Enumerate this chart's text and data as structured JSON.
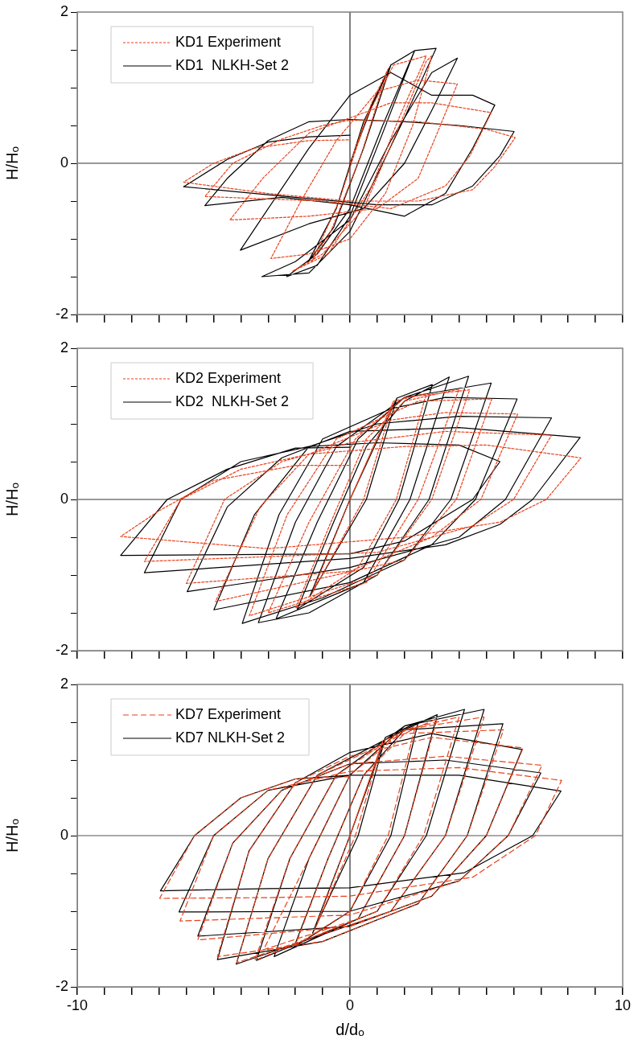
{
  "chart_data": [
    {
      "type": "line",
      "ylabel": "H/Hₒ",
      "xlim": [
        -10,
        10
      ],
      "ylim": [
        -2,
        2
      ],
      "xticks": [
        -10,
        {
          "value": -9,
          "label": null
        },
        {
          "value": -8,
          "label": null
        },
        {
          "value": -7,
          "label": null
        },
        {
          "value": -6,
          "label": null
        },
        {
          "value": -5,
          "label": null
        },
        {
          "value": -4,
          "label": null
        },
        {
          "value": -3,
          "label": null
        },
        {
          "value": -2,
          "label": null
        },
        {
          "value": -1,
          "label": null
        },
        0,
        {
          "value": 1,
          "label": null
        },
        {
          "value": 2,
          "label": null
        },
        {
          "value": 3,
          "label": null
        },
        {
          "value": 4,
          "label": null
        },
        {
          "value": 5,
          "label": null
        },
        {
          "value": 6,
          "label": null
        },
        {
          "value": 7,
          "label": null
        },
        {
          "value": 8,
          "label": null
        },
        {
          "value": 9,
          "label": null
        },
        10
      ],
      "yticks": [
        -2,
        {
          "value": -1.5,
          "label": null
        },
        {
          "value": -1,
          "label": null
        },
        {
          "value": -0.5,
          "label": null
        },
        0,
        {
          "value": 0.5,
          "label": null
        },
        {
          "value": 1,
          "label": null
        },
        {
          "value": 1.5,
          "label": null
        },
        2
      ],
      "tick_labels": "y",
      "grid": false,
      "legend": "top left",
      "marker": "none",
      "ref_lines": [
        {
          "axis": "x",
          "value": 0,
          "color": "#000000"
        },
        {
          "axis": "y",
          "value": 0,
          "color": "#333333"
        }
      ],
      "series": [
        {
          "name": "KD1 Experiment",
          "color": "#e8411c",
          "line_style": "dotted",
          "x": [
            0,
            0.8,
            1.4,
            0.4,
            -0.7,
            -1.4,
            -0.4,
            0.6,
            1.6,
            2.8,
            1.8,
            0.8,
            -0.8,
            -2.12,
            -1.0,
            0.5,
            1.7,
            2.8,
            3.0,
            2.3,
            1.3,
            0,
            -1.5,
            -2.9,
            -1.8,
            -0.5,
            1.0,
            2.5,
            3.94,
            3.2,
            2.5,
            1.0,
            -1.5,
            -4.4,
            -3.2,
            -1.5,
            0,
            1.5,
            3.0,
            5.18,
            4.4,
            3.5,
            1.5,
            -1.0,
            -5.32,
            -4.3,
            -2.5,
            -1.0,
            0,
            2.5,
            5.0,
            6.06,
            5.3,
            4.5,
            2.5,
            0,
            -3.0,
            -6.1,
            -5.0,
            -3.5,
            -1.5,
            0
          ],
          "values": [
            0,
            0.8,
            1.25,
            0.1,
            -0.9,
            -1.3,
            -0.5,
            0.6,
            1.3,
            1.42,
            0.6,
            -0.3,
            -1.2,
            -1.43,
            -1.2,
            -0.6,
            0.4,
            1.35,
            1.42,
            0.5,
            -0.4,
            -1.0,
            -1.2,
            -1.26,
            -0.5,
            0.3,
            0.95,
            1.1,
            1.05,
            0.4,
            -0.2,
            -0.6,
            -0.7,
            -0.75,
            -0.2,
            0.4,
            0.6,
            0.8,
            0.8,
            0.67,
            0.1,
            -0.3,
            -0.6,
            -0.5,
            -0.44,
            0.0,
            0.32,
            0.5,
            0.57,
            0.55,
            0.45,
            0.34,
            -0.05,
            -0.35,
            -0.5,
            -0.5,
            -0.4,
            -0.25,
            0.0,
            0.2,
            0.3,
            0.31
          ]
        },
        {
          "name": "KD1  NLKH-Set 2",
          "color": "#000000",
          "line_style": "solid",
          "x": [
            0,
            0.8,
            1.5,
            0.5,
            -0.6,
            -1.54,
            -0.5,
            0.5,
            1.5,
            2.37,
            1.2,
            0,
            -1.2,
            -2.32,
            -1.2,
            0,
            1.2,
            2.37,
            3.16,
            2.0,
            1.2,
            0,
            -1.5,
            -3.23,
            -2.0,
            0,
            1.5,
            3.0,
            3.94,
            3.0,
            2.0,
            0.5,
            -1.5,
            -4.02,
            -3.0,
            -1.5,
            0,
            1.5,
            3.0,
            4.5,
            5.31,
            4.5,
            3.5,
            2.0,
            0,
            -2.5,
            -5.32,
            -4.5,
            -3.0,
            -1.5,
            0,
            2.0,
            4.0,
            6.02,
            5.5,
            4.5,
            3.0,
            1.0,
            -2.0,
            -6.1,
            -4.5,
            -3.0,
            -1.5,
            0
          ],
          "values": [
            0,
            0.75,
            1.3,
            0.2,
            -0.85,
            -1.31,
            -0.6,
            0.55,
            1.3,
            1.49,
            0.4,
            -0.7,
            -1.35,
            -1.5,
            -1.2,
            -0.6,
            0.5,
            1.49,
            1.52,
            0.6,
            0,
            -0.9,
            -1.45,
            -1.5,
            -1.3,
            -0.75,
            0.3,
            1.2,
            1.39,
            0.7,
            0,
            -0.6,
            -0.8,
            -1.15,
            -0.6,
            0.2,
            0.9,
            1.2,
            0.9,
            0.9,
            0.77,
            0.2,
            -0.4,
            -0.7,
            -0.55,
            -0.45,
            -0.56,
            -0.2,
            0.3,
            0.55,
            0.58,
            0.55,
            0.5,
            0.42,
            0.1,
            -0.3,
            -0.55,
            -0.55,
            -0.45,
            -0.31,
            0.05,
            0.28,
            0.35,
            0.37
          ]
        }
      ]
    },
    {
      "type": "line",
      "ylabel": "H/Hₒ",
      "xlim": [
        -10,
        10
      ],
      "ylim": [
        -2,
        2
      ],
      "xticks": [
        -10,
        {
          "value": -9,
          "label": null
        },
        {
          "value": -8,
          "label": null
        },
        {
          "value": -7,
          "label": null
        },
        {
          "value": -6,
          "label": null
        },
        {
          "value": -5,
          "label": null
        },
        {
          "value": -4,
          "label": null
        },
        {
          "value": -3,
          "label": null
        },
        {
          "value": -2,
          "label": null
        },
        {
          "value": -1,
          "label": null
        },
        0,
        {
          "value": 1,
          "label": null
        },
        {
          "value": 2,
          "label": null
        },
        {
          "value": 3,
          "label": null
        },
        {
          "value": 4,
          "label": null
        },
        {
          "value": 5,
          "label": null
        },
        {
          "value": 6,
          "label": null
        },
        {
          "value": 7,
          "label": null
        },
        {
          "value": 8,
          "label": null
        },
        {
          "value": 9,
          "label": null
        },
        10
      ],
      "yticks": [
        -2,
        {
          "value": -1.5,
          "label": null
        },
        {
          "value": -1,
          "label": null
        },
        {
          "value": -0.5,
          "label": null
        },
        0,
        {
          "value": 0.5,
          "label": null
        },
        {
          "value": 1,
          "label": null
        },
        {
          "value": 1.5,
          "label": null
        },
        2
      ],
      "tick_labels": "y",
      "grid": false,
      "legend": "top left",
      "marker": "none",
      "ref_lines": [
        {
          "axis": "x",
          "value": 0,
          "color": "#000000"
        },
        {
          "axis": "y",
          "value": 0,
          "color": "#333333"
        }
      ],
      "series": [
        {
          "name": "KD2 Experiment",
          "color": "#e8411c",
          "line_style": "dotted",
          "x": [
            0,
            1.6,
            0.5,
            -1.4,
            0,
            1.6,
            2.8,
            1.7,
            0.3,
            -1.99,
            -0.7,
            0.6,
            2.0,
            4.0,
            2.5,
            0.6,
            -3.0,
            -1.5,
            0.2,
            2.0,
            4.39,
            3.0,
            1.0,
            -3.69,
            -2.3,
            -0.5,
            2.5,
            5.2,
            3.9,
            2.0,
            -4.93,
            -3.3,
            -1.5,
            1.5,
            3.5,
            6.15,
            4.8,
            3.0,
            0,
            -6.0,
            -4.6,
            -2.5,
            0,
            3.5,
            7.39,
            6.0,
            4.5,
            1.0,
            -7.54,
            -6.2,
            -4.0,
            -1.5,
            2.0,
            5.0,
            8.47,
            7.2,
            5.5,
            2.0,
            -3.0,
            -8.41,
            -7.0,
            -5.0,
            -2.0,
            0
          ],
          "values": [
            0,
            1.3,
            0,
            -1.25,
            0,
            1.3,
            1.4,
            0,
            -0.9,
            -1.44,
            -0.3,
            0.8,
            1.3,
            1.46,
            0,
            -1.1,
            -1.5,
            -0.3,
            0.8,
            1.35,
            1.45,
            0,
            -1.0,
            -1.54,
            -0.2,
            0.8,
            1.3,
            1.33,
            0,
            -0.8,
            -1.35,
            -0.1,
            0.6,
            1.05,
            1.15,
            1.13,
            0,
            -0.5,
            -0.95,
            -1.11,
            0,
            0.5,
            0.75,
            0.9,
            0.85,
            0,
            -0.35,
            -0.7,
            -0.82,
            0,
            0.4,
            0.6,
            0.7,
            0.72,
            0.55,
            0,
            -0.3,
            -0.5,
            -0.65,
            -0.49,
            -0.15,
            0.25,
            0.45,
            0.45
          ]
        },
        {
          "name": "KD2  NLKH-Set 2",
          "color": "#000000",
          "line_style": "solid",
          "x": [
            0,
            1.72,
            0.6,
            -1.47,
            0,
            1.72,
            3.02,
            1.8,
            0.5,
            -1.93,
            -0.6,
            0.6,
            2.0,
            3.64,
            2.2,
            0.5,
            -2.71,
            -1.2,
            0.3,
            2.0,
            4.35,
            2.9,
            1.0,
            -1.5,
            -3.36,
            -2.0,
            -0.5,
            2.0,
            5.18,
            3.7,
            2.0,
            -1.0,
            -3.95,
            -2.6,
            -1.0,
            1.5,
            3.5,
            6.13,
            4.6,
            3.0,
            0,
            -4.99,
            -3.5,
            -1.5,
            1.0,
            4.0,
            7.39,
            5.7,
            4.0,
            0,
            -5.97,
            -4.5,
            -2.5,
            0,
            4.0,
            8.44,
            6.7,
            5.5,
            3.5,
            0,
            -7.54,
            -6.2,
            -4.0,
            -1.5,
            1.0,
            4.0,
            5.5,
            4.5,
            2.0,
            0,
            -8.41,
            -6.7,
            -4.5,
            -2.0,
            0
          ],
          "values": [
            0,
            1.34,
            0,
            -1.28,
            0,
            1.34,
            1.52,
            0,
            -0.9,
            -1.45,
            -0.3,
            0.7,
            1.3,
            1.62,
            0,
            -1.1,
            -1.58,
            -0.3,
            0.8,
            1.35,
            1.63,
            0,
            -1.0,
            -1.5,
            -1.63,
            -0.3,
            0.7,
            1.35,
            1.54,
            0,
            -0.8,
            -1.3,
            -1.64,
            -0.2,
            0.8,
            1.2,
            1.35,
            1.33,
            0,
            -0.6,
            -1.1,
            -1.46,
            -0.2,
            0.7,
            1.0,
            1.1,
            1.08,
            0,
            -0.5,
            -0.9,
            -1.22,
            -0.1,
            0.55,
            0.9,
            0.95,
            0.82,
            0,
            -0.33,
            -0.6,
            -0.78,
            -0.97,
            0,
            0.5,
            0.7,
            0.75,
            0.72,
            0.5,
            0,
            -0.55,
            -0.72,
            -0.74,
            0,
            0.4,
            0.68,
            0.69
          ]
        }
      ]
    },
    {
      "type": "line",
      "ylabel": "H/Hₒ",
      "xlabel": "d/dₒ",
      "xlim": [
        -10,
        10
      ],
      "ylim": [
        -2,
        2
      ],
      "xticks": [
        -10,
        {
          "value": -9,
          "label": null
        },
        {
          "value": -8,
          "label": null
        },
        {
          "value": -7,
          "label": null
        },
        {
          "value": -6,
          "label": null
        },
        {
          "value": -5,
          "label": null
        },
        {
          "value": -4,
          "label": null
        },
        {
          "value": -3,
          "label": null
        },
        {
          "value": -2,
          "label": null
        },
        {
          "value": -1,
          "label": null
        },
        0,
        {
          "value": 1,
          "label": null
        },
        {
          "value": 2,
          "label": null
        },
        {
          "value": 3,
          "label": null
        },
        {
          "value": 4,
          "label": null
        },
        {
          "value": 5,
          "label": null
        },
        {
          "value": 6,
          "label": null
        },
        {
          "value": 7,
          "label": null
        },
        {
          "value": 8,
          "label": null
        },
        {
          "value": 9,
          "label": null
        },
        10
      ],
      "yticks": [
        -2,
        {
          "value": -1.5,
          "label": null
        },
        {
          "value": -1,
          "label": null
        },
        {
          "value": -0.5,
          "label": null
        },
        0,
        {
          "value": 0.5,
          "label": null
        },
        {
          "value": 1,
          "label": null
        },
        {
          "value": 1.5,
          "label": null
        },
        2
      ],
      "grid": false,
      "legend": "top left",
      "marker": "none",
      "ref_lines": [
        {
          "axis": "x",
          "value": 0,
          "color": "#000000"
        },
        {
          "axis": "y",
          "value": 0,
          "color": "#555555"
        }
      ],
      "series": [
        {
          "name": "KD7 Experiment",
          "color": "#e8411c",
          "line_style": "dashed",
          "x": [
            0,
            1.2,
            0.2,
            -1.3,
            0,
            1.2,
            2.4,
            1.4,
            0,
            -2.0,
            -0.8,
            0.5,
            2.0,
            3.2,
            2.0,
            0.3,
            -3.17,
            -1.5,
            0,
            2.0,
            4.0,
            2.7,
            1.0,
            -3.49,
            -2.2,
            -0.5,
            2.0,
            4.92,
            3.5,
            1.5,
            -4.15,
            -3.0,
            -1.2,
            2.0,
            5.63,
            4.3,
            2.5,
            -1.0,
            -4.86,
            -3.7,
            -2.0,
            0,
            3.0,
            6.35,
            5.0,
            3.0,
            0,
            -5.58,
            -4.3,
            -2.5,
            0,
            3.5,
            7.04,
            5.8,
            4.0,
            0,
            -6.23,
            -5.0,
            -3.0,
            0,
            4.0,
            7.76,
            6.8,
            4.5,
            0,
            -3.0,
            -6.98,
            -5.7,
            -4.0,
            -2.0,
            0
          ],
          "values": [
            0,
            1.25,
            0,
            -1.25,
            0,
            1.25,
            1.45,
            0,
            -1.0,
            -1.45,
            -0.3,
            0.8,
            1.35,
            1.55,
            0,
            -1.1,
            -1.51,
            -0.3,
            0.8,
            1.4,
            1.57,
            0,
            -1.0,
            -1.65,
            -0.3,
            0.8,
            1.4,
            1.57,
            0,
            -1.0,
            -1.68,
            -0.3,
            0.8,
            1.35,
            1.4,
            0,
            -0.9,
            -1.4,
            -1.6,
            -0.2,
            0.7,
            1.05,
            1.3,
            1.16,
            0,
            -0.8,
            -1.2,
            -1.38,
            -0.1,
            0.6,
            0.95,
            1.05,
            0.93,
            0,
            -0.6,
            -1.05,
            -1.13,
            0,
            0.6,
            0.85,
            0.9,
            0.73,
            0,
            -0.55,
            -0.8,
            -0.82,
            -0.83,
            0,
            0.5,
            0.75,
            0.78
          ]
        },
        {
          "name": "KD7 NLKH-Set 2",
          "color": "#000000",
          "line_style": "solid",
          "x": [
            0,
            1.3,
            0.3,
            -1.37,
            0,
            1.3,
            2.5,
            1.5,
            0,
            -2.06,
            -0.8,
            0.5,
            2.0,
            3.2,
            2.0,
            0.3,
            -2.78,
            -1.5,
            0,
            2.0,
            4.2,
            2.8,
            1.0,
            -3.43,
            -2.2,
            -0.5,
            2.0,
            4.92,
            3.5,
            1.5,
            -4.17,
            -3.0,
            -1.2,
            2.0,
            5.61,
            4.3,
            2.5,
            -1.0,
            -4.86,
            -3.7,
            -2.0,
            0,
            3.0,
            6.31,
            5.0,
            3.0,
            0,
            -5.58,
            -4.3,
            -2.5,
            0,
            3.5,
            7.0,
            5.8,
            4.0,
            0,
            -6.27,
            -5.0,
            -3.0,
            0,
            4.0,
            7.74,
            6.7,
            4.2,
            0,
            -3.0,
            -6.95,
            -5.7,
            -4.0,
            -2.0,
            0
          ],
          "values": [
            0,
            1.3,
            0,
            -1.29,
            0,
            1.3,
            1.5,
            0,
            -1.0,
            -1.48,
            -0.3,
            0.8,
            1.4,
            1.6,
            0,
            -1.1,
            -1.6,
            -0.3,
            0.8,
            1.45,
            1.67,
            0,
            -1.0,
            -1.65,
            -0.3,
            0.8,
            1.45,
            1.67,
            0,
            -1.0,
            -1.7,
            -0.3,
            0.8,
            1.4,
            1.48,
            0,
            -0.9,
            -1.4,
            -1.64,
            -0.2,
            0.7,
            1.1,
            1.35,
            1.14,
            0,
            -0.8,
            -1.2,
            -1.33,
            -0.1,
            0.6,
            0.95,
            1.0,
            0.83,
            0,
            -0.6,
            -1.0,
            -1.01,
            0,
            0.6,
            0.8,
            0.8,
            0.59,
            0,
            -0.49,
            -0.69,
            -0.7,
            -0.73,
            0,
            0.5,
            0.75,
            0.8
          ]
        }
      ]
    }
  ]
}
